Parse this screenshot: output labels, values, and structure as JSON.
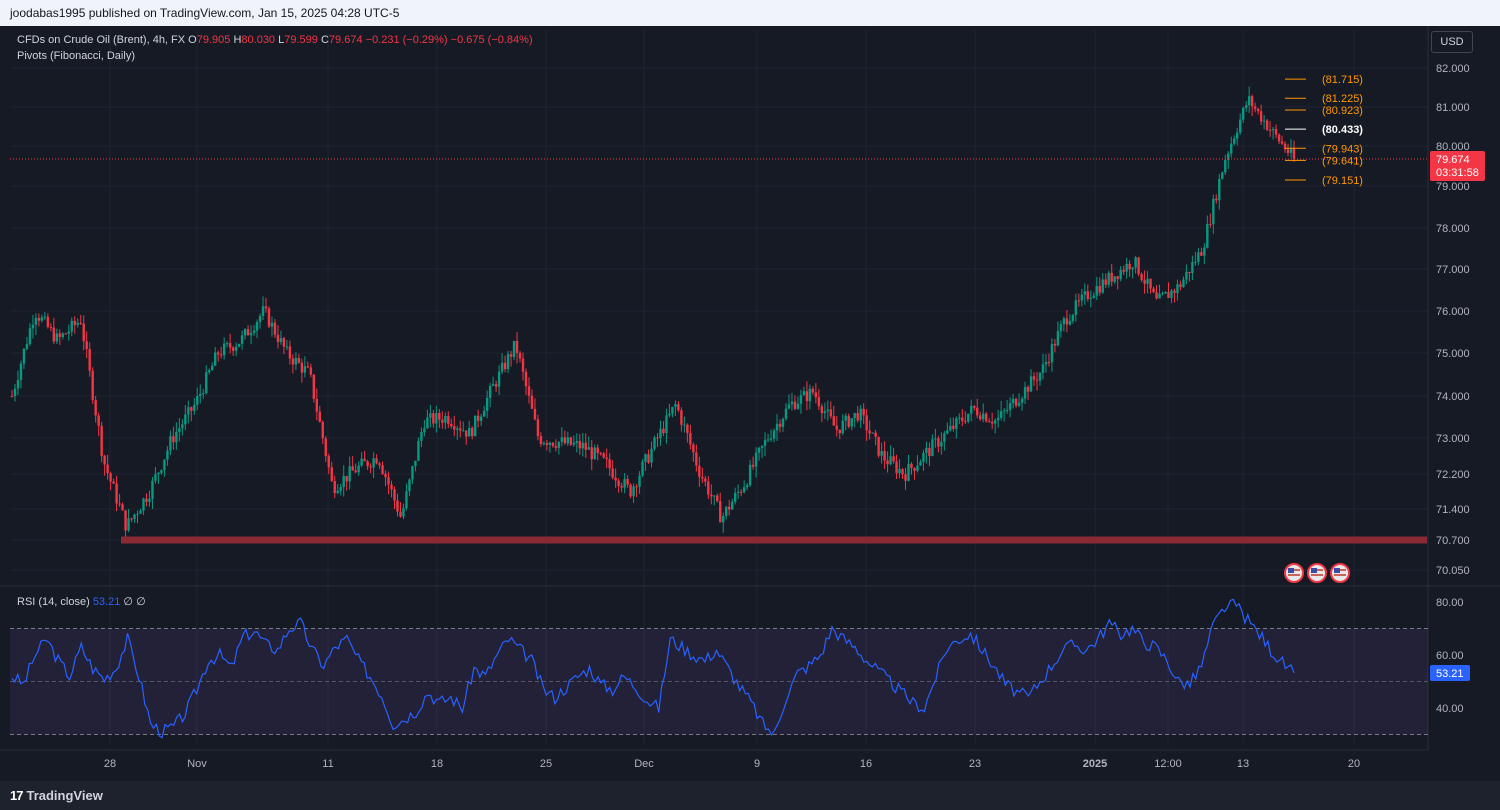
{
  "header": {
    "publish_line": "joodabas1995 published on TradingView.com, Jan 15, 2025 04:28 UTC-5"
  },
  "legend": {
    "symbol": "CFDs on Crude Oil (Brent), 4h, FX",
    "o_label": "O",
    "o": "79.905",
    "h_label": "H",
    "h": "80.030",
    "l_label": "L",
    "l": "79.599",
    "c_label": "C",
    "c": "79.674",
    "change": "−0.231 (−0.29%)",
    "change2": "−0.675 (−0.84%)",
    "indicator": "Pivots (Fibonacci, Daily)"
  },
  "currency_button": "USD",
  "rsi_legend": {
    "name": "RSI (14, close)",
    "value": "53.21",
    "extra1": "∅",
    "extra2": "∅"
  },
  "footer": {
    "brand": "TradingView",
    "brand_mark": "17"
  },
  "colors": {
    "up": "#089981",
    "down": "#f23645",
    "pivot_orange": "#ff9800",
    "rsi_line": "#2962ff",
    "support_zone": "#8b2a35"
  },
  "chart_data": [
    {
      "type": "candlestick",
      "title": "CFDs on Crude Oil (Brent), 4h, FX",
      "ylim": [
        70.05,
        82.0
      ],
      "y_ticks": [
        "82.000",
        "81.000",
        "80.000",
        "79.000",
        "78.000",
        "77.000",
        "76.000",
        "75.000",
        "74.000",
        "73.000",
        "72.200",
        "71.400",
        "70.700",
        "70.050"
      ],
      "x_tick_labels": [
        "28",
        "Nov",
        "11",
        "18",
        "25",
        "Dec",
        "9",
        "16",
        "23",
        "2025",
        "12:00",
        "13",
        "20"
      ],
      "approx_close_path": [
        {
          "x": "Oct 24",
          "y": 74.0
        },
        {
          "x": "Oct 25",
          "y": 76.0
        },
        {
          "x": "Oct 26",
          "y": 75.3
        },
        {
          "x": "Oct 27",
          "y": 75.8
        },
        {
          "x": "Oct 28",
          "y": 72.5
        },
        {
          "x": "Oct 29",
          "y": 71.0
        },
        {
          "x": "Oct 30",
          "y": 71.8
        },
        {
          "x": "Oct 31",
          "y": 73.0
        },
        {
          "x": "Nov 1",
          "y": 73.8
        },
        {
          "x": "Nov 3",
          "y": 75.0
        },
        {
          "x": "Nov 5",
          "y": 75.3
        },
        {
          "x": "Nov 6",
          "y": 76.0
        },
        {
          "x": "Nov 8",
          "y": 75.0
        },
        {
          "x": "Nov 10",
          "y": 74.5
        },
        {
          "x": "Nov 11",
          "y": 71.9
        },
        {
          "x": "Nov 13",
          "y": 72.3
        },
        {
          "x": "Nov 14",
          "y": 72.6
        },
        {
          "x": "Nov 15",
          "y": 71.2
        },
        {
          "x": "Nov 18",
          "y": 73.4
        },
        {
          "x": "Nov 19",
          "y": 73.5
        },
        {
          "x": "Nov 21",
          "y": 73.1
        },
        {
          "x": "Nov 22",
          "y": 74.2
        },
        {
          "x": "Nov 25",
          "y": 75.2
        },
        {
          "x": "Nov 26",
          "y": 73.0
        },
        {
          "x": "Nov 28",
          "y": 72.9
        },
        {
          "x": "Dec 1",
          "y": 72.8
        },
        {
          "x": "Dec 3",
          "y": 72.4
        },
        {
          "x": "Dec 4",
          "y": 71.8
        },
        {
          "x": "Dec 5",
          "y": 72.8
        },
        {
          "x": "Dec 6",
          "y": 73.8
        },
        {
          "x": "Dec 7",
          "y": 72.3
        },
        {
          "x": "Dec 9",
          "y": 71.2
        },
        {
          "x": "Dec 10",
          "y": 72.0
        },
        {
          "x": "Dec 12",
          "y": 73.0
        },
        {
          "x": "Dec 13",
          "y": 73.8
        },
        {
          "x": "Dec 16",
          "y": 74.1
        },
        {
          "x": "Dec 17",
          "y": 73.2
        },
        {
          "x": "Dec 19",
          "y": 73.6
        },
        {
          "x": "Dec 20",
          "y": 72.6
        },
        {
          "x": "Dec 22",
          "y": 72.2
        },
        {
          "x": "Dec 23",
          "y": 72.7
        },
        {
          "x": "Dec 24",
          "y": 73.2
        },
        {
          "x": "Dec 26",
          "y": 73.7
        },
        {
          "x": "Dec 27",
          "y": 73.4
        },
        {
          "x": "Dec 30",
          "y": 74.0
        },
        {
          "x": "Dec 31",
          "y": 74.6
        },
        {
          "x": "Jan 2",
          "y": 75.8
        },
        {
          "x": "Jan 3",
          "y": 76.4
        },
        {
          "x": "Jan 6",
          "y": 76.8
        },
        {
          "x": "Jan 7",
          "y": 77.2
        },
        {
          "x": "Jan 8",
          "y": 76.2
        },
        {
          "x": "Jan 9",
          "y": 76.6
        },
        {
          "x": "Jan 10",
          "y": 77.5
        },
        {
          "x": "Jan 10 pm",
          "y": 79.7
        },
        {
          "x": "Jan 13",
          "y": 81.2
        },
        {
          "x": "Jan 14",
          "y": 80.4
        },
        {
          "x": "Jan 15",
          "y": 79.674
        }
      ],
      "last_price": {
        "value": "79.674",
        "countdown": "03:31:58"
      },
      "pivot_levels": [
        {
          "label": "(81.715)",
          "value": 81.715,
          "color": "#ff9800"
        },
        {
          "label": "(81.225)",
          "value": 81.225,
          "color": "#ff9800"
        },
        {
          "label": "(80.923)",
          "value": 80.923,
          "color": "#ff9800"
        },
        {
          "label": "(80.433)",
          "value": 80.433,
          "color": "#ffffff"
        },
        {
          "label": "(79.943)",
          "value": 79.943,
          "color": "#ff9800"
        },
        {
          "label": "(79.641)",
          "value": 79.641,
          "color": "#ff9800"
        },
        {
          "label": "(79.151)",
          "value": 79.151,
          "color": "#ff9800"
        }
      ],
      "support_zone": {
        "value": 70.7
      },
      "event_markers": 3
    },
    {
      "type": "line",
      "title": "RSI (14, close)",
      "ylim": [
        30,
        85
      ],
      "y_ticks": [
        "80.00",
        "60.00",
        "40.00"
      ],
      "band": [
        30,
        70
      ],
      "midline": 50,
      "last_value": "53.21",
      "approx_values": [
        52,
        49,
        60,
        66,
        58,
        52,
        63,
        55,
        51,
        55,
        66,
        52,
        34,
        31,
        33,
        38,
        47,
        58,
        60,
        55,
        67,
        69,
        64,
        62,
        70,
        72,
        62,
        56,
        63,
        66,
        58,
        52,
        45,
        34,
        36,
        39,
        46,
        42,
        44,
        40,
        55,
        52,
        60,
        66,
        62,
        58,
        47,
        44,
        48,
        52,
        55,
        49,
        47,
        52,
        48,
        43,
        40,
        66,
        63,
        60,
        58,
        62,
        55,
        48,
        42,
        34,
        30,
        44,
        53,
        56,
        60,
        70,
        66,
        63,
        58,
        54,
        50,
        46,
        42,
        40,
        52,
        63,
        66,
        68,
        62,
        56,
        49,
        46,
        44,
        50,
        56,
        62,
        64,
        62,
        66,
        72,
        68,
        70,
        65,
        63,
        58,
        50,
        49,
        56,
        71,
        78,
        79,
        73,
        68,
        62,
        57,
        53
      ]
    }
  ]
}
